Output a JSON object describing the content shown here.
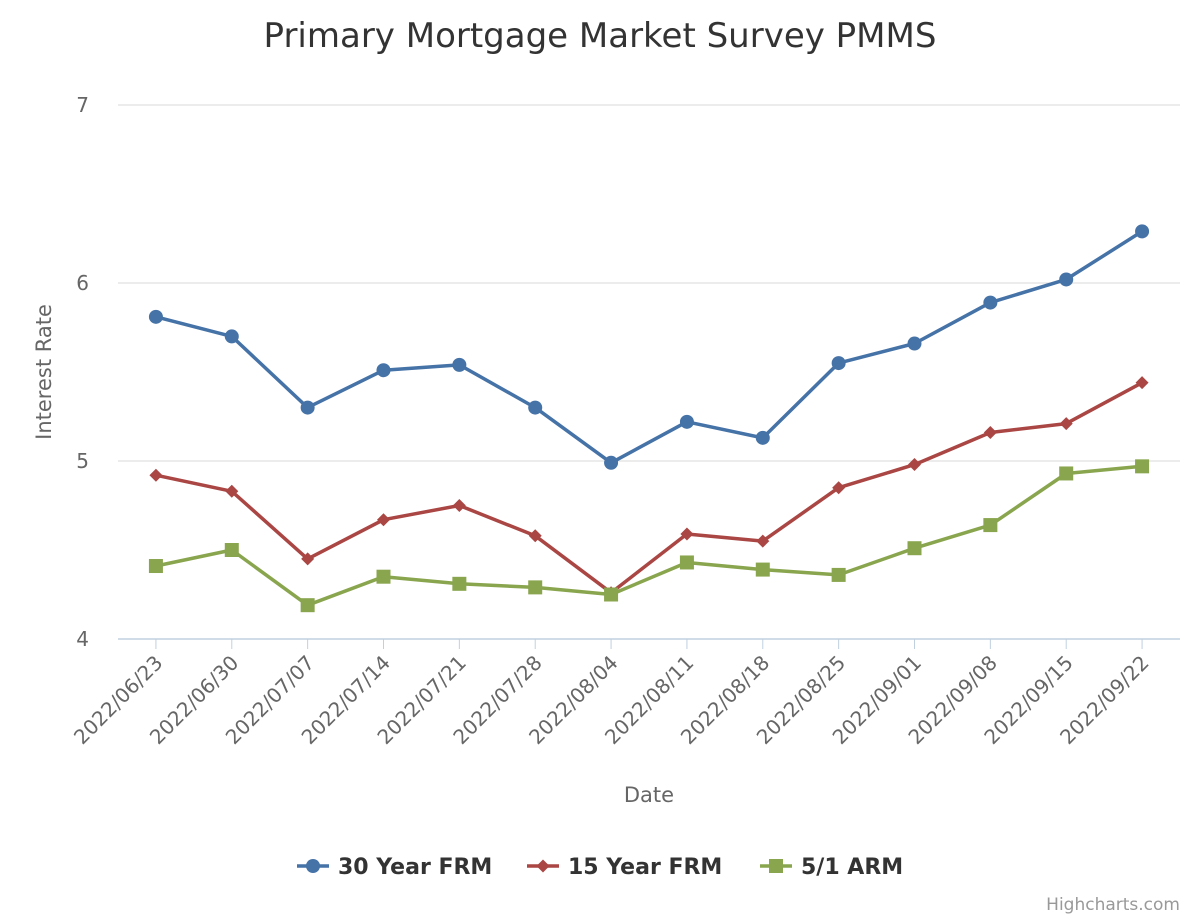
{
  "chart_data": {
    "type": "line",
    "title": "Primary Mortgage Market Survey PMMS",
    "xlabel": "Date",
    "ylabel": "Interest Rate",
    "ylim": [
      4,
      7
    ],
    "yticks": [
      "4",
      "5",
      "6",
      "7"
    ],
    "grid": true,
    "legend": "bottom-center",
    "categories": [
      "2022/06/23",
      "2022/06/30",
      "2022/07/07",
      "2022/07/14",
      "2022/07/21",
      "2022/07/28",
      "2022/08/04",
      "2022/08/11",
      "2022/08/18",
      "2022/08/25",
      "2022/09/01",
      "2022/09/08",
      "2022/09/15",
      "2022/09/22"
    ],
    "series": [
      {
        "name": "30 Year FRM",
        "color": "#4572A7",
        "marker": "circle",
        "values": [
          5.81,
          5.7,
          5.3,
          5.51,
          5.54,
          5.3,
          4.99,
          5.22,
          5.13,
          5.55,
          5.66,
          5.89,
          6.02,
          6.29
        ]
      },
      {
        "name": "15 Year FRM",
        "color": "#AA4643",
        "marker": "diamond",
        "values": [
          4.92,
          4.83,
          4.45,
          4.67,
          4.75,
          4.58,
          4.26,
          4.59,
          4.55,
          4.85,
          4.98,
          5.16,
          5.21,
          5.44
        ]
      },
      {
        "name": "5/1 ARM",
        "color": "#89A54E",
        "marker": "square",
        "values": [
          4.41,
          4.5,
          4.19,
          4.35,
          4.31,
          4.29,
          4.25,
          4.43,
          4.39,
          4.36,
          4.51,
          4.64,
          4.93,
          4.97
        ]
      }
    ],
    "credits": "Highcharts.com"
  }
}
